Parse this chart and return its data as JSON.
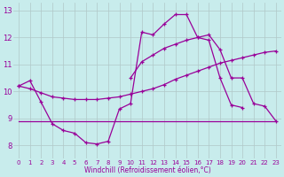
{
  "title": "",
  "xlabel": "Windchill (Refroidissement éolien,°C)",
  "background_color": "#c8ecec",
  "line_color": "#990099",
  "grid_color": "#b0c8c8",
  "xlim_min": -0.5,
  "xlim_max": 23.5,
  "ylim_min": 7.5,
  "ylim_max": 13.3,
  "xticks": [
    0,
    1,
    2,
    3,
    4,
    5,
    6,
    7,
    8,
    9,
    10,
    11,
    12,
    13,
    14,
    15,
    16,
    17,
    18,
    19,
    20,
    21,
    22,
    23
  ],
  "yticks": [
    8,
    9,
    10,
    11,
    12,
    13
  ],
  "line_main_x": [
    0,
    1,
    2,
    3,
    4,
    5,
    6,
    7,
    8,
    9,
    10,
    11,
    12,
    13,
    14,
    15,
    16,
    17,
    18,
    19,
    20
  ],
  "line_main_y": [
    10.2,
    10.4,
    9.6,
    8.8,
    8.55,
    8.45,
    8.1,
    8.05,
    8.15,
    9.35,
    9.55,
    12.2,
    12.1,
    12.5,
    12.85,
    12.85,
    12.0,
    11.9,
    10.5,
    9.5,
    9.4
  ],
  "line_slow_x": [
    0,
    1,
    2,
    3,
    4,
    5,
    6,
    7,
    8,
    9,
    10,
    11,
    12,
    13,
    14,
    15,
    16,
    17,
    18,
    19,
    20,
    21,
    22,
    23
  ],
  "line_slow_y": [
    10.2,
    10.1,
    9.95,
    9.8,
    9.75,
    9.7,
    9.7,
    9.7,
    9.75,
    9.8,
    9.9,
    10.0,
    10.1,
    10.25,
    10.45,
    10.6,
    10.75,
    10.9,
    11.05,
    11.15,
    11.25,
    11.35,
    11.45,
    11.5
  ],
  "line_flat_x": [
    0,
    1,
    2,
    3,
    4,
    5,
    6,
    7,
    8,
    9,
    10,
    11,
    12,
    13,
    14,
    15,
    16,
    17,
    18,
    19,
    20,
    21,
    22,
    23
  ],
  "line_flat_y": [
    8.9,
    8.9,
    8.9,
    8.9,
    8.9,
    8.9,
    8.9,
    8.9,
    8.9,
    8.9,
    8.9,
    8.9,
    8.9,
    8.9,
    8.9,
    8.9,
    8.9,
    8.9,
    8.9,
    8.9,
    8.9,
    8.9,
    8.9,
    8.9
  ],
  "line_upper_x": [
    10,
    11,
    12,
    13,
    14,
    15,
    16,
    17,
    18,
    19,
    20,
    21,
    22,
    23
  ],
  "line_upper_y": [
    10.5,
    11.1,
    11.35,
    11.6,
    11.75,
    11.9,
    12.0,
    12.1,
    11.55,
    10.5,
    10.5,
    9.55,
    9.45,
    8.9
  ]
}
